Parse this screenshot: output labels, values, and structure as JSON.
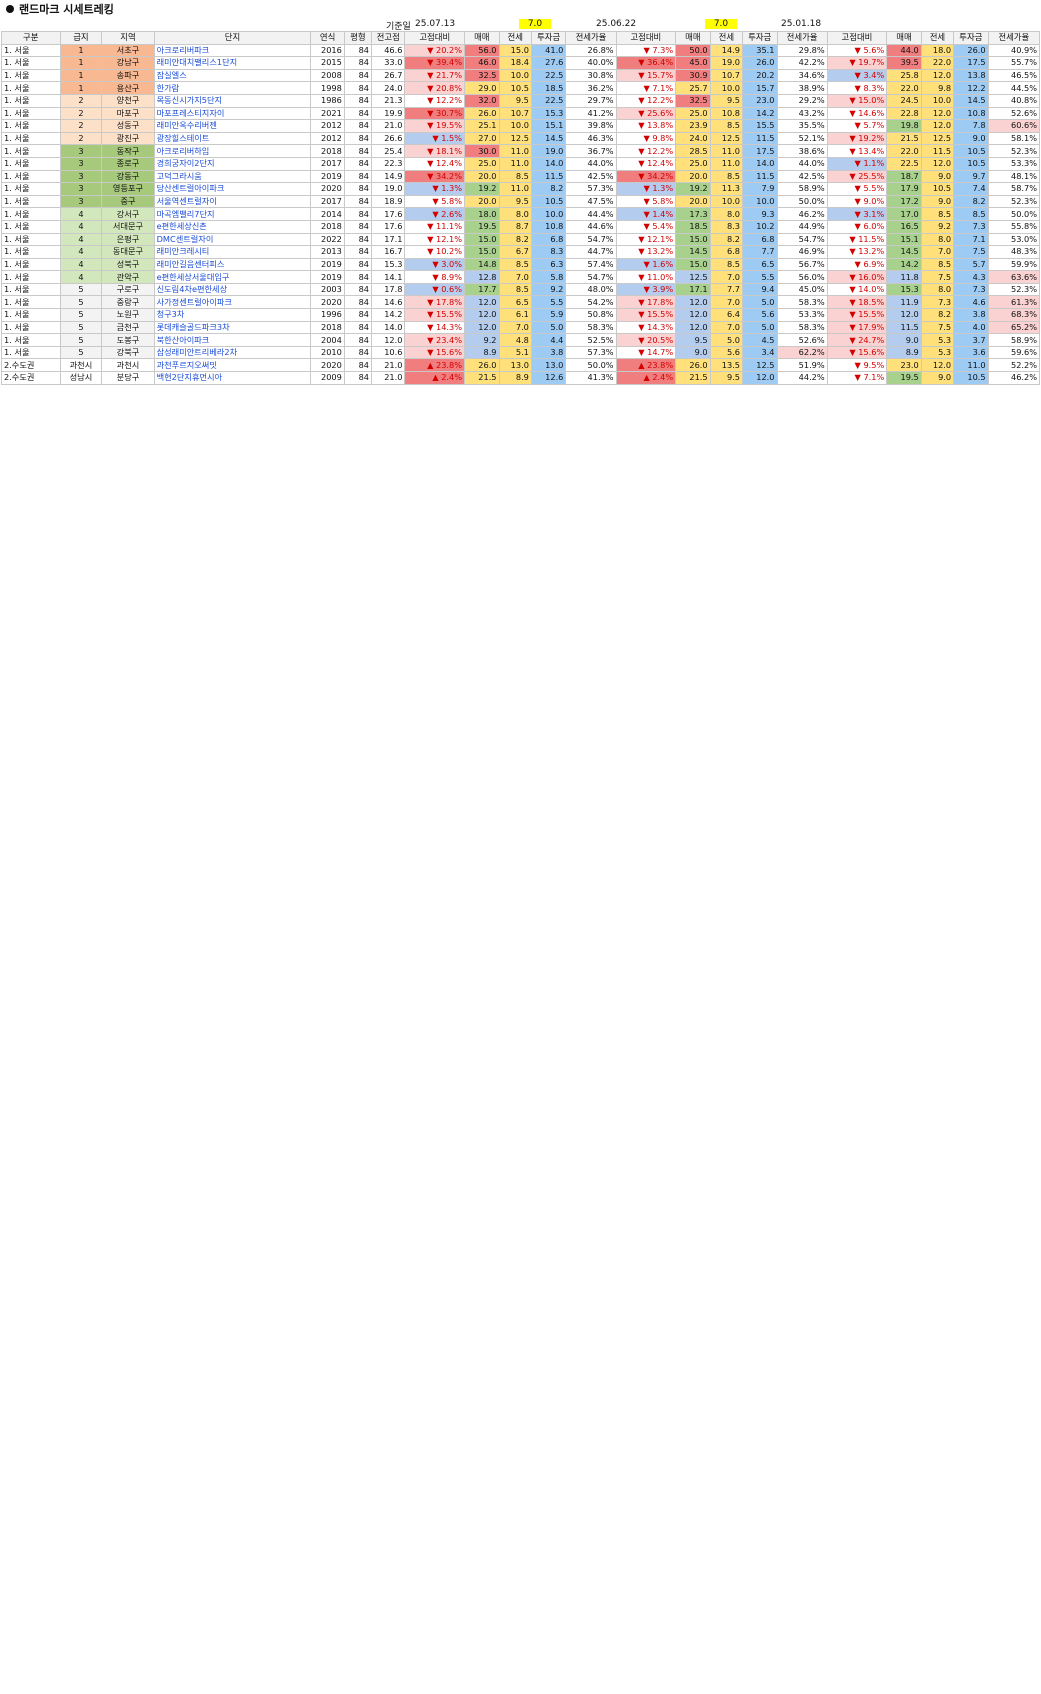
{
  "page": {
    "title": "랜드마크 시세트레킹"
  },
  "dates": {
    "base_label": "기준일",
    "d1": "25.07.13",
    "d2": "25.06.22",
    "d3": "25.01.18",
    "inv1": "7.0",
    "inv2": "7.0"
  },
  "headers": [
    "구분",
    "급지",
    "지역",
    "단지",
    "연식",
    "평형",
    "전고점",
    "고점대비",
    "매매",
    "전세",
    "투자금",
    "전세가율",
    "고점대비",
    "매매",
    "전세",
    "투자금",
    "전세가율",
    "고점대비",
    "매매",
    "전세",
    "투자금",
    "전세가율"
  ],
  "rows": [
    [
      "1. 서울",
      "1",
      "서초구",
      "아크로리버파크",
      "2016",
      "84",
      "46.6",
      "▼ 20.2%",
      "56.0",
      "15.0",
      "41.0",
      "26.8%",
      "▼ 7.3%",
      "50.0",
      "14.9",
      "35.1",
      "29.8%",
      "▼ 5.6%",
      "44.0",
      "18.0",
      "26.0",
      "40.9%"
    ],
    [
      "1. 서울",
      "1",
      "강남구",
      "래미안대치팰리스1단지",
      "2015",
      "84",
      "33.0",
      "▼ 39.4%",
      "46.0",
      "18.4",
      "27.6",
      "40.0%",
      "▼ 36.4%",
      "45.0",
      "19.0",
      "26.0",
      "42.2%",
      "▼ 19.7%",
      "39.5",
      "22.0",
      "17.5",
      "55.7%"
    ],
    [
      "1. 서울",
      "1",
      "송파구",
      "잠실엘스",
      "2008",
      "84",
      "26.7",
      "▼ 21.7%",
      "32.5",
      "10.0",
      "22.5",
      "30.8%",
      "▼ 15.7%",
      "30.9",
      "10.7",
      "20.2",
      "34.6%",
      "▼ 3.4%",
      "25.8",
      "12.0",
      "13.8",
      "46.5%"
    ],
    [
      "1. 서울",
      "1",
      "용산구",
      "한가람",
      "1998",
      "84",
      "24.0",
      "▼ 20.8%",
      "29.0",
      "10.5",
      "18.5",
      "36.2%",
      "▼ 7.1%",
      "25.7",
      "10.0",
      "15.7",
      "38.9%",
      "▼ 8.3%",
      "22.0",
      "9.8",
      "12.2",
      "44.5%"
    ],
    [
      "1. 서울",
      "2",
      "양천구",
      "목동신시가지5단지",
      "1986",
      "84",
      "21.3",
      "▼ 12.2%",
      "32.0",
      "9.5",
      "22.5",
      "29.7%",
      "▼ 12.2%",
      "32.5",
      "9.5",
      "23.0",
      "29.2%",
      "▼ 15.0%",
      "24.5",
      "10.0",
      "14.5",
      "40.8%"
    ],
    [
      "1. 서울",
      "2",
      "마포구",
      "마포프레스티지자이",
      "2021",
      "84",
      "19.9",
      "▼ 30.7%",
      "26.0",
      "10.7",
      "15.3",
      "41.2%",
      "▼ 25.6%",
      "25.0",
      "10.8",
      "14.2",
      "43.2%",
      "▼ 14.6%",
      "22.8",
      "12.0",
      "10.8",
      "52.6%"
    ],
    [
      "1. 서울",
      "2",
      "성동구",
      "래미안옥수리버젠",
      "2012",
      "84",
      "21.0",
      "▼ 19.5%",
      "25.1",
      "10.0",
      "15.1",
      "39.8%",
      "▼ 13.8%",
      "23.9",
      "8.5",
      "15.5",
      "35.5%",
      "▼ 5.7%",
      "19.8",
      "12.0",
      "7.8",
      "60.6%"
    ],
    [
      "1. 서울",
      "2",
      "광진구",
      "광장힐스테이트",
      "2012",
      "84",
      "26.6",
      "▼ 1.5%",
      "27.0",
      "12.5",
      "14.5",
      "46.3%",
      "▼ 9.8%",
      "24.0",
      "12.5",
      "11.5",
      "52.1%",
      "▼ 19.2%",
      "21.5",
      "12.5",
      "9.0",
      "58.1%"
    ],
    [
      "1. 서울",
      "3",
      "동작구",
      "아크로리버하임",
      "2018",
      "84",
      "25.4",
      "▼ 18.1%",
      "30.0",
      "11.0",
      "19.0",
      "36.7%",
      "▼ 12.2%",
      "28.5",
      "11.0",
      "17.5",
      "38.6%",
      "▼ 13.4%",
      "22.0",
      "11.5",
      "10.5",
      "52.3%"
    ],
    [
      "1. 서울",
      "3",
      "종로구",
      "경희궁자이2단지",
      "2017",
      "84",
      "22.3",
      "▼ 12.4%",
      "25.0",
      "11.0",
      "14.0",
      "44.0%",
      "▼ 12.4%",
      "25.0",
      "11.0",
      "14.0",
      "44.0%",
      "▼ 1.1%",
      "22.5",
      "12.0",
      "10.5",
      "53.3%"
    ],
    [
      "1. 서울",
      "3",
      "강동구",
      "고덕그라시움",
      "2019",
      "84",
      "14.9",
      "▼ 34.2%",
      "20.0",
      "8.5",
      "11.5",
      "42.5%",
      "▼ 34.2%",
      "20.0",
      "8.5",
      "11.5",
      "42.5%",
      "▼ 25.5%",
      "18.7",
      "9.0",
      "9.7",
      "48.1%"
    ],
    [
      "1. 서울",
      "3",
      "영등포구",
      "당산센트럴아이파크",
      "2020",
      "84",
      "19.0",
      "▼ 1.3%",
      "19.2",
      "11.0",
      "8.2",
      "57.3%",
      "▼ 1.3%",
      "19.2",
      "11.3",
      "7.9",
      "58.9%",
      "▼ 5.5%",
      "17.9",
      "10.5",
      "7.4",
      "58.7%"
    ],
    [
      "1. 서울",
      "3",
      "중구",
      "서울역센트럴자이",
      "2017",
      "84",
      "18.9",
      "▼ 5.8%",
      "20.0",
      "9.5",
      "10.5",
      "47.5%",
      "▼ 5.8%",
      "20.0",
      "10.0",
      "10.0",
      "50.0%",
      "▼ 9.0%",
      "17.2",
      "9.0",
      "8.2",
      "52.3%"
    ],
    [
      "1. 서울",
      "4",
      "강서구",
      "마곡엠밸리7단지",
      "2014",
      "84",
      "17.6",
      "▼ 2.6%",
      "18.0",
      "8.0",
      "10.0",
      "44.4%",
      "▼ 1.4%",
      "17.3",
      "8.0",
      "9.3",
      "46.2%",
      "▼ 3.1%",
      "17.0",
      "8.5",
      "8.5",
      "50.0%"
    ],
    [
      "1. 서울",
      "4",
      "서대문구",
      "e편한세상신촌",
      "2018",
      "84",
      "17.6",
      "▼ 11.1%",
      "19.5",
      "8.7",
      "10.8",
      "44.6%",
      "▼ 5.4%",
      "18.5",
      "8.3",
      "10.2",
      "44.9%",
      "▼ 6.0%",
      "16.5",
      "9.2",
      "7.3",
      "55.8%"
    ],
    [
      "1. 서울",
      "4",
      "은평구",
      "DMC센트럴자이",
      "2022",
      "84",
      "17.1",
      "▼ 12.1%",
      "15.0",
      "8.2",
      "6.8",
      "54.7%",
      "▼ 12.1%",
      "15.0",
      "8.2",
      "6.8",
      "54.7%",
      "▼ 11.5%",
      "15.1",
      "8.0",
      "7.1",
      "53.0%"
    ],
    [
      "1. 서울",
      "4",
      "동대문구",
      "래미안크레시티",
      "2013",
      "84",
      "16.7",
      "▼ 10.2%",
      "15.0",
      "6.7",
      "8.3",
      "44.7%",
      "▼ 13.2%",
      "14.5",
      "6.8",
      "7.7",
      "46.9%",
      "▼ 13.2%",
      "14.5",
      "7.0",
      "7.5",
      "48.3%"
    ],
    [
      "1. 서울",
      "4",
      "성북구",
      "래미안길음센터피스",
      "2019",
      "84",
      "15.3",
      "▼ 3.0%",
      "14.8",
      "8.5",
      "6.3",
      "57.4%",
      "▼ 1.6%",
      "15.0",
      "8.5",
      "6.5",
      "56.7%",
      "▼ 6.9%",
      "14.2",
      "8.5",
      "5.7",
      "59.9%"
    ],
    [
      "1. 서울",
      "4",
      "관악구",
      "e편한세상서울대입구",
      "2019",
      "84",
      "14.1",
      "▼ 8.9%",
      "12.8",
      "7.0",
      "5.8",
      "54.7%",
      "▼ 11.0%",
      "12.5",
      "7.0",
      "5.5",
      "56.0%",
      "▼ 16.0%",
      "11.8",
      "7.5",
      "4.3",
      "63.6%"
    ],
    [
      "1. 서울",
      "5",
      "구로구",
      "신도림4차e편한세상",
      "2003",
      "84",
      "17.8",
      "▼ 0.6%",
      "17.7",
      "8.5",
      "9.2",
      "48.0%",
      "▼ 3.9%",
      "17.1",
      "7.7",
      "9.4",
      "45.0%",
      "▼ 14.0%",
      "15.3",
      "8.0",
      "7.3",
      "52.3%"
    ],
    [
      "1. 서울",
      "5",
      "중랑구",
      "사가정센트럴아이파크",
      "2020",
      "84",
      "14.6",
      "▼ 17.8%",
      "12.0",
      "6.5",
      "5.5",
      "54.2%",
      "▼ 17.8%",
      "12.0",
      "7.0",
      "5.0",
      "58.3%",
      "▼ 18.5%",
      "11.9",
      "7.3",
      "4.6",
      "61.3%"
    ],
    [
      "1. 서울",
      "5",
      "노원구",
      "청구3차",
      "1996",
      "84",
      "14.2",
      "▼ 15.5%",
      "12.0",
      "6.1",
      "5.9",
      "50.8%",
      "▼ 15.5%",
      "12.0",
      "6.4",
      "5.6",
      "53.3%",
      "▼ 15.5%",
      "12.0",
      "8.2",
      "3.8",
      "68.3%"
    ],
    [
      "1. 서울",
      "5",
      "금천구",
      "롯데캐슬골드파크3차",
      "2018",
      "84",
      "14.0",
      "▼ 14.3%",
      "12.0",
      "7.0",
      "5.0",
      "58.3%",
      "▼ 14.3%",
      "12.0",
      "7.0",
      "5.0",
      "58.3%",
      "▼ 17.9%",
      "11.5",
      "7.5",
      "4.0",
      "65.2%"
    ],
    [
      "1. 서울",
      "5",
      "도봉구",
      "북한산아이파크",
      "2004",
      "84",
      "12.0",
      "▼ 23.4%",
      "9.2",
      "4.8",
      "4.4",
      "52.5%",
      "▼ 20.5%",
      "9.5",
      "5.0",
      "4.5",
      "52.6%",
      "▼ 24.7%",
      "9.0",
      "5.3",
      "3.7",
      "58.9%"
    ],
    [
      "1. 서울",
      "5",
      "강북구",
      "삼성래미안트리베라2차",
      "2010",
      "84",
      "10.6",
      "▼ 15.6%",
      "8.9",
      "5.1",
      "3.8",
      "57.3%",
      "▼ 14.7%",
      "9.0",
      "5.6",
      "3.4",
      "62.2%",
      "▼ 15.6%",
      "8.9",
      "5.3",
      "3.6",
      "59.6%"
    ],
    [
      "2.수도권",
      "과천시",
      "과천시",
      "과천푸르지오써밋",
      "2020",
      "84",
      "21.0",
      "▲ 23.8%",
      "26.0",
      "13.0",
      "13.0",
      "50.0%",
      "▲ 23.8%",
      "26.0",
      "13.5",
      "12.5",
      "51.9%",
      "▼ 9.5%",
      "23.0",
      "12.0",
      "11.0",
      "52.2%"
    ],
    [
      "2.수도권",
      "성남시",
      "분당구",
      "백현2단지휴먼시아",
      "2009",
      "84",
      "21.0",
      "▲ 2.4%",
      "21.5",
      "8.9",
      "12.6",
      "41.3%",
      "▲ 2.4%",
      "21.5",
      "9.5",
      "12.0",
      "44.2%",
      "▼ 7.1%",
      "19.5",
      "9.0",
      "10.5",
      "46.2%"
    ]
  ]
}
